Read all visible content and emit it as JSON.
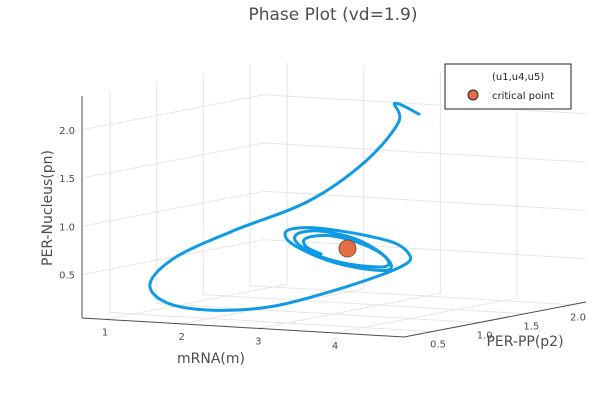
{
  "chart_data": {
    "type": "line",
    "projection": "3d",
    "title": "Phase Plot (vd=1.9)",
    "xlabel": "mRNA(m)",
    "ylabel": "PER-PP(p2)",
    "zlabel": "PER-Nucleus(pn)",
    "xlim": [
      0.7,
      4.9
    ],
    "ylim": [
      0.2,
      2.15
    ],
    "zlim": [
      0.05,
      2.35
    ],
    "xticks": [
      "1",
      "2",
      "3",
      "4"
    ],
    "yticks": [
      "0.5",
      "1.0",
      "1.5",
      "2.0"
    ],
    "zticks": [
      "0.5",
      "1.0",
      "1.5",
      "2.0"
    ],
    "grid": true,
    "legend_position": "top-right",
    "series": [
      {
        "name": "(u1,u4,u5)",
        "kind": "trajectory",
        "color": "#0f9ae6",
        "x": [
          4.0,
          3.2,
          2.7,
          2.15,
          1.65,
          1.2,
          1.0,
          1.1,
          1.5,
          2.1,
          2.75,
          3.3,
          3.7,
          3.92,
          3.98,
          3.92,
          3.7,
          3.35,
          2.95,
          2.6,
          2.45,
          2.5,
          2.8,
          3.2,
          3.6,
          3.82,
          3.86,
          3.74,
          3.5,
          3.1,
          2.8,
          2.62,
          2.6,
          2.74,
          3.04,
          3.42,
          3.7,
          3.8,
          3.72,
          3.5,
          3.2,
          2.92,
          2.74,
          2.7,
          2.82
        ],
        "y": [
          1.1,
          1.5,
          1.95,
          2.05,
          1.85,
          1.4,
          0.95,
          0.6,
          0.45,
          0.45,
          0.55,
          0.75,
          0.95,
          1.05,
          1.0,
          0.9,
          0.8,
          0.78,
          0.8,
          0.85,
          0.95,
          1.05,
          1.1,
          1.1,
          1.05,
          0.95,
          0.88,
          0.83,
          0.8,
          0.8,
          0.83,
          0.9,
          0.98,
          1.04,
          1.07,
          1.06,
          1.0,
          0.93,
          0.88,
          0.84,
          0.83,
          0.85,
          0.9,
          0.97,
          1.02
        ],
        "z": [
          2.15,
          2.15,
          1.85,
          1.4,
          1.0,
          0.75,
          0.55,
          0.35,
          0.2,
          0.15,
          0.2,
          0.35,
          0.5,
          0.62,
          0.73,
          0.85,
          0.93,
          0.97,
          0.98,
          0.93,
          0.82,
          0.7,
          0.58,
          0.52,
          0.52,
          0.58,
          0.68,
          0.8,
          0.9,
          0.95,
          0.92,
          0.84,
          0.74,
          0.64,
          0.57,
          0.55,
          0.58,
          0.66,
          0.76,
          0.85,
          0.9,
          0.88,
          0.82,
          0.73,
          0.66
        ]
      },
      {
        "name": "critical point",
        "kind": "point",
        "color": "#e26f46",
        "x": [
          3.25
        ],
        "y": [
          0.95
        ],
        "z": [
          0.75
        ]
      }
    ]
  }
}
